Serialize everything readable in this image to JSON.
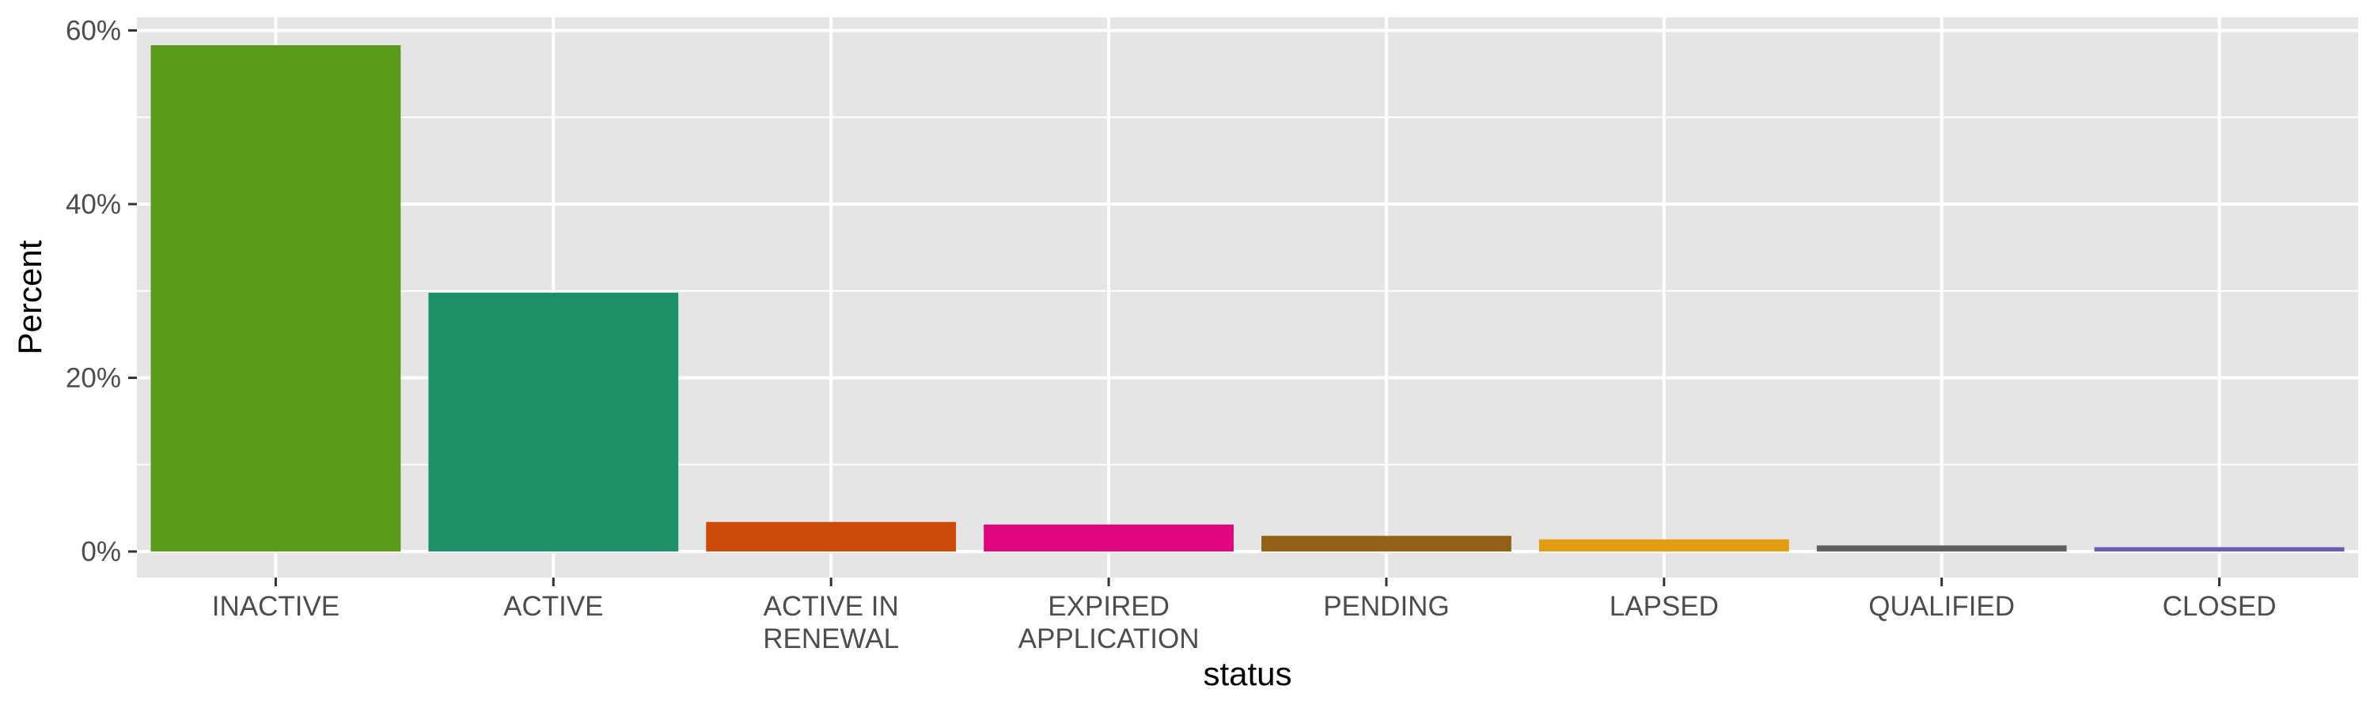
{
  "chart_data": {
    "type": "bar",
    "title": "",
    "xlabel": "status",
    "ylabel": "Percent",
    "categories": [
      [
        "INACTIVE"
      ],
      [
        "ACTIVE"
      ],
      [
        "ACTIVE IN",
        "RENEWAL"
      ],
      [
        "EXPIRED",
        "APPLICATION"
      ],
      [
        "PENDING"
      ],
      [
        "LAPSED"
      ],
      [
        "QUALIFIED"
      ],
      [
        "CLOSED"
      ]
    ],
    "values": [
      58.3,
      29.8,
      3.4,
      3.1,
      1.8,
      1.4,
      0.7,
      0.5
    ],
    "colors": [
      "#5A9A1A",
      "#1E9068",
      "#CC4A0A",
      "#E0077E",
      "#936116",
      "#E09E10",
      "#5F5F5F",
      "#6D5DB0"
    ],
    "ylim": [
      -3,
      61.5
    ],
    "y_ticks": [
      0,
      20,
      40,
      60
    ],
    "y_tick_labels": [
      "0%",
      "20%",
      "40%",
      "60%"
    ],
    "grid": true,
    "legend": "none",
    "panel_color": "#E5E5E5",
    "gridline_color": "#FFFFFF"
  }
}
